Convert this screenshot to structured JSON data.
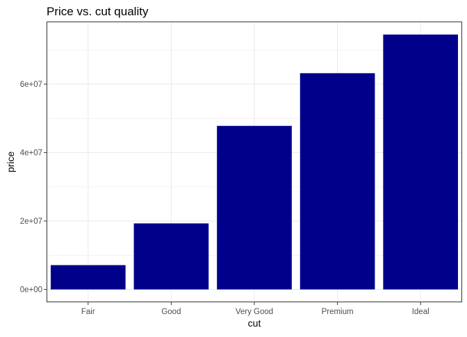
{
  "chart_data": {
    "type": "bar",
    "title": "Price vs. cut quality",
    "xlabel": "cut",
    "ylabel": "price",
    "categories": [
      "Fair",
      "Good",
      "Very Good",
      "Premium",
      "Ideal"
    ],
    "values": [
      7100000,
      19300000,
      47800000,
      63200000,
      74500000
    ],
    "ylim": [
      -3750000,
      78300000
    ],
    "yticks": [
      0,
      20000000,
      40000000,
      60000000
    ],
    "ytick_labels": [
      "0e+00",
      "2e+07",
      "4e+07",
      "6e+07"
    ],
    "bar_color": "#00008B",
    "panel_border_color": "#333333",
    "grid": true,
    "legend": "none"
  }
}
